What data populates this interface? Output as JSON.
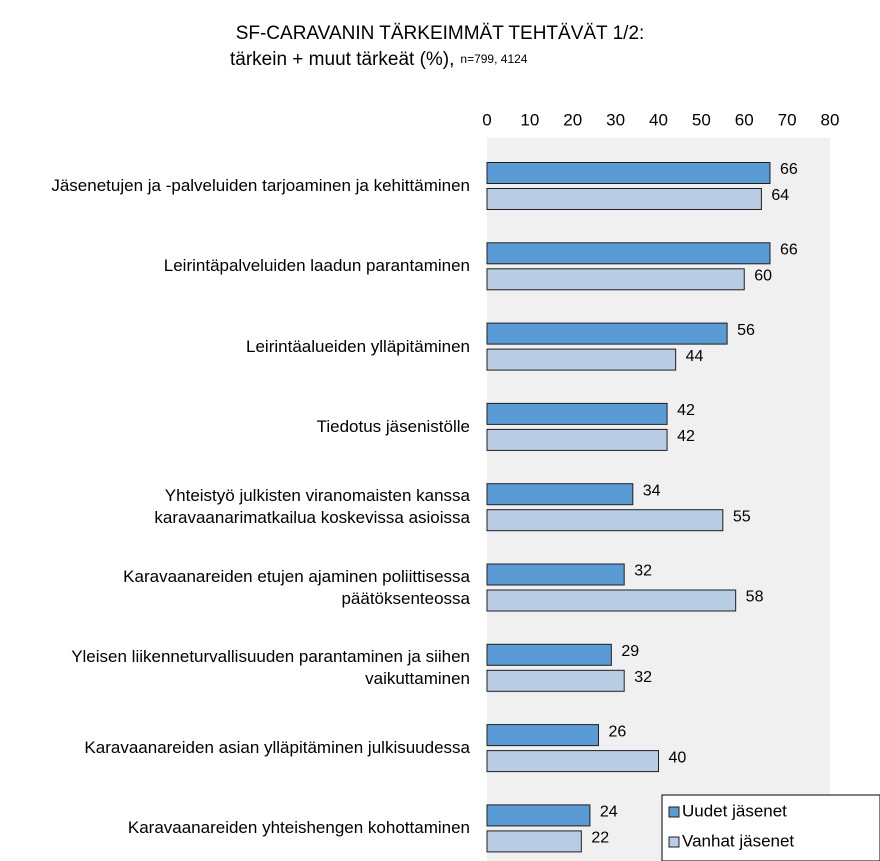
{
  "chart_data": {
    "type": "bar",
    "orientation": "horizontal",
    "title": "SF-CARAVANIN TÄRKEIMMÄT TEHTÄVÄT 1/2:",
    "subtitle": "tärkein + muut tärkeät (%),",
    "note": "n=799, 4124",
    "categories": [
      "Jäsenetujen ja -palveluiden tarjoaminen ja kehittäminen",
      "Leirintäpalveluiden laadun parantaminen",
      "Leirintäalueiden ylläpitäminen",
      "Tiedotus jäsenistölle",
      "Yhteistyö julkisten viranomaisten kanssa karavaanarimatkailua koskevissa asioissa",
      "Karavaanareiden etujen ajaminen poliittisessa päätöksenteossa",
      "Yleisen liikenneturvallisuuden parantaminen ja siihen vaikuttaminen",
      "Karavaanareiden asian ylläpitäminen julkisuudessa",
      "Karavaanareiden yhteishengen kohottaminen"
    ],
    "series": [
      {
        "name": "Uudet jäsenet",
        "color": "#5b9bd5",
        "values": [
          66,
          66,
          56,
          42,
          34,
          32,
          29,
          26,
          24
        ]
      },
      {
        "name": "Vanhat jäsenet",
        "color": "#b8cce4",
        "values": [
          64,
          60,
          44,
          42,
          55,
          58,
          32,
          40,
          22
        ]
      }
    ],
    "xlim": [
      0,
      80
    ],
    "xticks": [
      0,
      10,
      20,
      30,
      40,
      50,
      60,
      70,
      80
    ],
    "legend": "lower right",
    "grid": false
  }
}
